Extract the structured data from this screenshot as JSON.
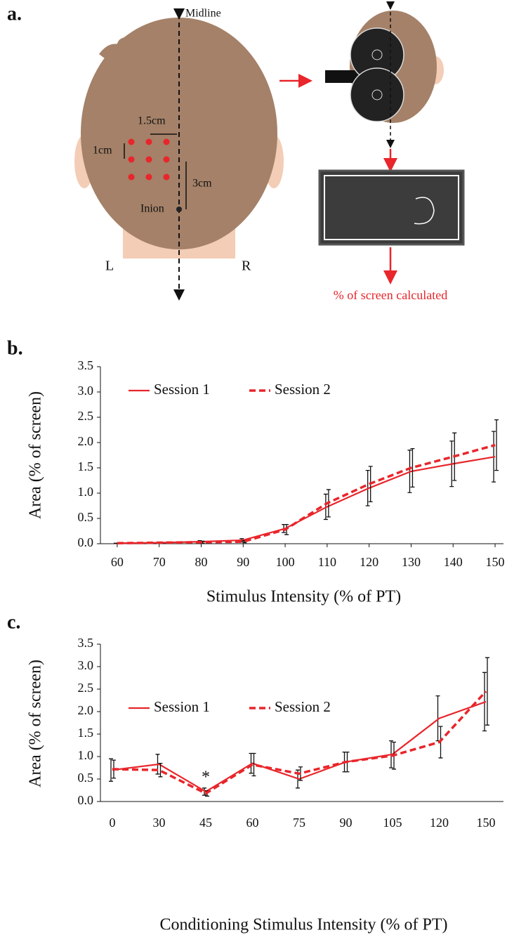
{
  "panel_labels": [
    "a.",
    "b.",
    "c."
  ],
  "diagram": {
    "midline": "Midline",
    "spacing_h": "1.5cm",
    "spacing_v": "1cm",
    "distance": "3cm",
    "inion": "Inion",
    "left": "L",
    "right": "R",
    "result": "% of screen calculated"
  },
  "chart_data": [
    {
      "type": "line",
      "x_label": "Stimulus Intensity (% of PT)",
      "y_label": "Area (% of screen)",
      "x": [
        60,
        70,
        80,
        90,
        100,
        110,
        120,
        130,
        140,
        150
      ],
      "series": [
        {
          "name": "Session 1",
          "color": "#e8262b",
          "dash": false,
          "values": [
            0.01,
            0.02,
            0.04,
            0.07,
            0.3,
            0.73,
            1.1,
            1.43,
            1.58,
            1.72
          ],
          "errors": [
            0,
            0,
            0.02,
            0.03,
            0.08,
            0.25,
            0.35,
            0.42,
            0.45,
            0.5
          ]
        },
        {
          "name": "Session 2",
          "color": "#e8262b",
          "dash": true,
          "values": [
            0.01,
            0.02,
            0.03,
            0.04,
            0.28,
            0.8,
            1.18,
            1.5,
            1.72,
            1.95
          ],
          "errors": [
            0,
            0,
            0.02,
            0.02,
            0.1,
            0.27,
            0.35,
            0.38,
            0.47,
            0.5
          ]
        }
      ],
      "xlim": [
        56,
        152
      ],
      "xticks": [
        60,
        70,
        80,
        90,
        100,
        110,
        120,
        130,
        140,
        150
      ],
      "ylim": [
        0,
        3.5
      ],
      "yticks": [
        {
          "value": 0,
          "label": "0.0"
        },
        {
          "value": 0.5,
          "label": "0.5"
        },
        {
          "value": 1,
          "label": "1.0"
        },
        {
          "value": 1.5,
          "label": "1.5"
        },
        {
          "value": 2,
          "label": "2.0"
        },
        {
          "value": 2.5,
          "label": "2.5"
        },
        {
          "value": 3,
          "label": "3.0"
        },
        {
          "value": 3.5,
          "label": "3.5"
        }
      ],
      "grid": false
    },
    {
      "type": "line",
      "x_label": "Conditioning Stimulus Intensity (% of PT)",
      "y_label": "Area (% of screen)",
      "categories": [
        "0",
        "30",
        "45",
        "60",
        "75",
        "90",
        "105",
        "120",
        "150"
      ],
      "series": [
        {
          "name": "Session 1",
          "color": "#e8262b",
          "dash": false,
          "values": [
            0.7,
            0.83,
            0.22,
            0.85,
            0.5,
            0.88,
            1.05,
            1.85,
            2.22
          ],
          "errors": [
            0.25,
            0.22,
            0.08,
            0.22,
            0.2,
            0.22,
            0.3,
            0.5,
            0.65
          ]
        },
        {
          "name": "Session 2",
          "color": "#e8262b",
          "dash": true,
          "values": [
            0.72,
            0.7,
            0.18,
            0.82,
            0.62,
            0.88,
            1.02,
            1.32,
            2.45
          ],
          "errors": [
            0.2,
            0.15,
            0.06,
            0.25,
            0.15,
            0.22,
            0.3,
            0.35,
            0.75
          ]
        }
      ],
      "annotations": [
        {
          "category": "45",
          "text": "*"
        }
      ],
      "ylim": [
        0,
        3.5
      ],
      "yticks": [
        {
          "value": 0,
          "label": "0.0"
        },
        {
          "value": 0.5,
          "label": "0.5"
        },
        {
          "value": 1,
          "label": "1.0"
        },
        {
          "value": 1.5,
          "label": "1.5"
        },
        {
          "value": 2,
          "label": "2.0"
        },
        {
          "value": 2.5,
          "label": "2.5"
        },
        {
          "value": 3,
          "label": "3.0"
        },
        {
          "value": 3.5,
          "label": "3.5"
        }
      ],
      "grid": false
    }
  ]
}
